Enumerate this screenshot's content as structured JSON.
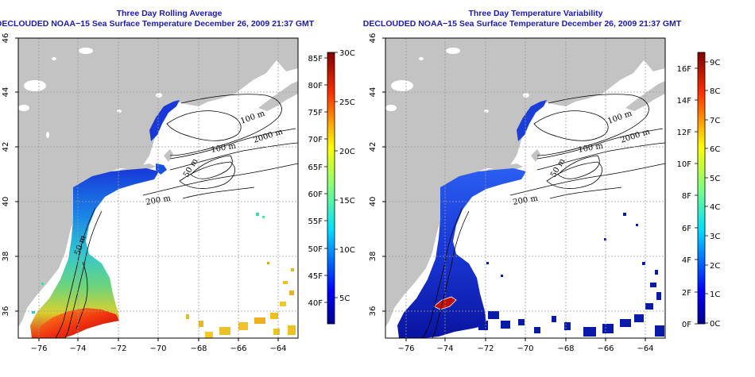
{
  "panels": [
    {
      "id": "average",
      "title": "Three Day Rolling Average",
      "subtitle": "DECLOUDED NOAA−15 Sea Surface Temperature December 26, 2009 21:37 GMT",
      "x_ticks": [
        "−76",
        "−74",
        "−72",
        "−70",
        "−68",
        "−66",
        "−64"
      ],
      "y_ticks": [
        "46",
        "44",
        "42",
        "40",
        "38",
        "36"
      ],
      "colorbar": {
        "left_labels": [
          "85F",
          "80F",
          "75F",
          "70F",
          "65F",
          "60F",
          "55F",
          "50F",
          "45F",
          "40F"
        ],
        "right_labels": [
          "30C",
          "25C",
          "20C",
          "15C",
          "10C",
          "5C"
        ]
      },
      "contour_labels": [
        "100 m",
        "2000 m",
        "100 m",
        "50 m",
        "200 m",
        "50 m"
      ]
    },
    {
      "id": "variability",
      "title": "Three Day Temperature Variability",
      "subtitle": "DECLOUDED NOAA−15 Sea Surface Temperature December 26, 2009 21:37 GMT",
      "x_ticks": [
        "−76",
        "−74",
        "−72",
        "−70",
        "−68",
        "−66",
        "−64"
      ],
      "y_ticks": [
        "46",
        "44",
        "42",
        "40",
        "38",
        "36"
      ],
      "colorbar": {
        "left_labels": [
          "16F",
          "14F",
          "12F",
          "10F",
          "8F",
          "6F",
          "4F",
          "2F",
          "0F"
        ],
        "right_labels": [
          "9C",
          "8C",
          "7C",
          "6C",
          "5C",
          "4C",
          "3C",
          "2C",
          "1C",
          "0C"
        ]
      },
      "contour_labels": [
        "100 m",
        "2000 m",
        "100 m",
        "50 m",
        "200 m"
      ]
    }
  ],
  "colors": {
    "land": "#c3c3c3",
    "title": "#1a1ab0",
    "cold": "#1832d8",
    "warm": "#e83010",
    "deep_blue": "#0a1aa8"
  }
}
